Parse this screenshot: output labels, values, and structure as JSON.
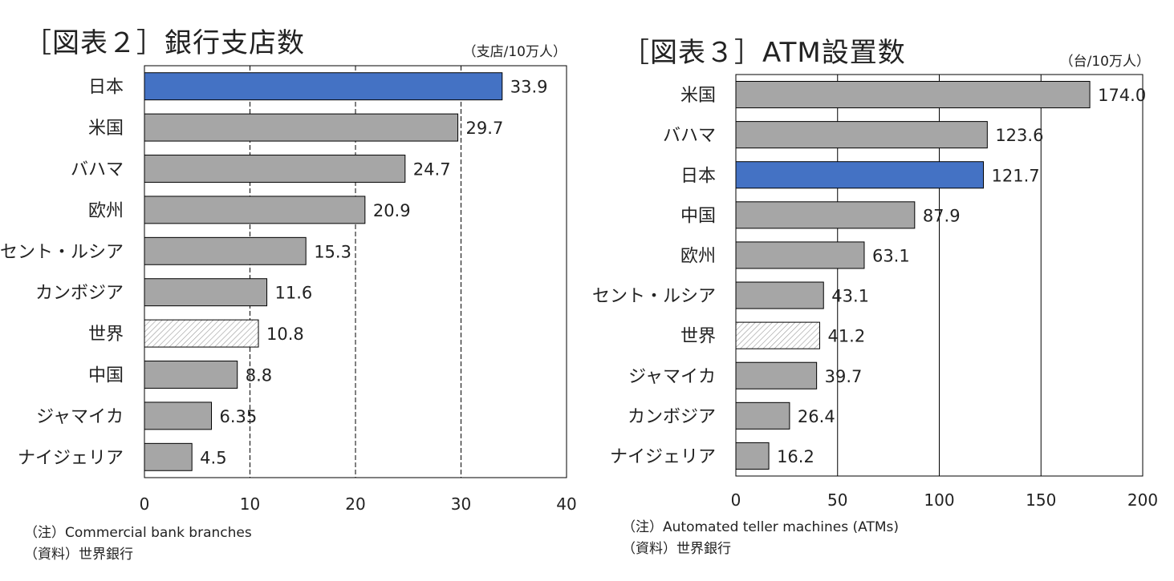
{
  "left": {
    "title": "［図表２］銀行支店数",
    "unit": "（支店/10万人）",
    "note1": "（注）Commercial bank branches",
    "note2": "（資料）世界銀行"
  },
  "right": {
    "title": "［図表３］ATM設置数",
    "unit": "（台/10万人）",
    "note1": "（注）Automated teller machines (ATMs)",
    "note2": "（資料）世界銀行"
  },
  "colors": {
    "highlight": "#4472c4",
    "default": "#a6a6a6",
    "hatch_fill": "#ffffff",
    "hatch_stroke": "#999999"
  },
  "chart_data": [
    {
      "type": "bar",
      "orientation": "horizontal",
      "title": "［図表２］銀行支店数",
      "unit": "（支店/10万人）",
      "categories": [
        "日本",
        "米国",
        "バハマ",
        "欧州",
        "セント・ルシア",
        "カンボジア",
        "世界",
        "中国",
        "ジャマイカ",
        "ナイジェリア"
      ],
      "values": [
        33.9,
        29.7,
        24.7,
        20.9,
        15.3,
        11.6,
        10.8,
        8.8,
        6.35,
        4.5
      ],
      "value_labels": [
        "33.9",
        "29.7",
        "24.7",
        "20.9",
        "15.3",
        "11.6",
        "10.8",
        "8.8",
        "6.35",
        "4.5"
      ],
      "styles": [
        "highlight",
        "default",
        "default",
        "default",
        "default",
        "default",
        "hatched",
        "default",
        "default",
        "default"
      ],
      "xlim": [
        0,
        40
      ],
      "xticks": [
        0,
        10,
        20,
        30,
        40
      ],
      "grid": "vertical-dashed"
    },
    {
      "type": "bar",
      "orientation": "horizontal",
      "title": "［図表３］ATM設置数",
      "unit": "（台/10万人）",
      "categories": [
        "米国",
        "バハマ",
        "日本",
        "中国",
        "欧州",
        "セント・ルシア",
        "世界",
        "ジャマイカ",
        "カンボジア",
        "ナイジェリア"
      ],
      "values": [
        174.0,
        123.6,
        121.7,
        87.9,
        63.1,
        43.1,
        41.2,
        39.7,
        26.4,
        16.2
      ],
      "value_labels": [
        "174.0",
        "123.6",
        "121.7",
        "87.9",
        "63.1",
        "43.1",
        "41.2",
        "39.7",
        "26.4",
        "16.2"
      ],
      "styles": [
        "default",
        "default",
        "highlight",
        "default",
        "default",
        "default",
        "hatched",
        "default",
        "default",
        "default"
      ],
      "xlim": [
        0,
        200
      ],
      "xticks": [
        0,
        50,
        100,
        150,
        200
      ],
      "grid": "vertical-solid"
    }
  ]
}
